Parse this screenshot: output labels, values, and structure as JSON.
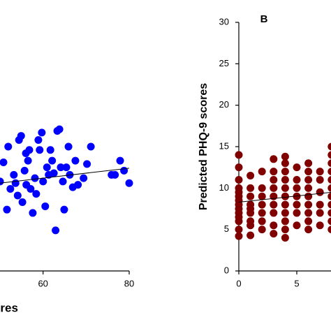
{
  "chart_data": [
    {
      "type": "scatter",
      "x_label": "ores",
      "color": "#0000ff",
      "x": [
        50,
        50.8,
        51.6,
        51.9,
        52.4,
        53.2,
        53.6,
        54.1,
        54.4,
        54.9,
        55.2,
        55.7,
        56,
        56.1,
        56.5,
        56.8,
        57.1,
        57.6,
        58.1,
        58.4,
        58.9,
        59.2,
        59.7,
        60,
        60.5,
        60.9,
        61.3,
        61.7,
        62.1,
        62.5,
        62.9,
        63.3,
        63.8,
        64.1,
        64.6,
        64.9,
        65.4,
        65.9,
        66.2,
        66.9,
        67.5,
        68.1,
        69.4,
        70.2,
        71.1,
        75.9,
        76.7,
        77.9,
        78.8,
        80
      ],
      "y": [
        10.8,
        13.1,
        7.4,
        15,
        9.9,
        11.6,
        10.6,
        9.1,
        15.8,
        16.3,
        8.3,
        12.1,
        14.2,
        10.4,
        13.3,
        14.6,
        9.9,
        7,
        11.2,
        9.3,
        15.8,
        14.6,
        16.7,
        10.8,
        7.8,
        12.5,
        11.6,
        14.6,
        13.3,
        11.8,
        4.9,
        16.9,
        17.1,
        12.5,
        10.8,
        7.4,
        12.5,
        15,
        11.6,
        10.1,
        13.3,
        10.4,
        11.2,
        12.9,
        15,
        11.6,
        11.6,
        13.3,
        12.1,
        10.6
      ],
      "trendline": {
        "x": [
          50,
          80
        ],
        "y": [
          10.6,
          12.4
        ]
      },
      "xlim": [
        40,
        80
      ],
      "ylim": [
        0,
        30
      ],
      "xticks": [
        60,
        80
      ]
    },
    {
      "type": "scatter",
      "panel_label": "B",
      "y_label": "Predicted PHQ-9 scores",
      "color": "#800000",
      "x": [
        0,
        0,
        0,
        0,
        0,
        0,
        0,
        0,
        0,
        0,
        0,
        0,
        0,
        0,
        1,
        1,
        1,
        1,
        1,
        1,
        1,
        1,
        1,
        2,
        2,
        2,
        2,
        2,
        2,
        2,
        3,
        3,
        3,
        3,
        3,
        3,
        3,
        3,
        3,
        4,
        4,
        4,
        4,
        4,
        4,
        4,
        4,
        4,
        4,
        4,
        5,
        5,
        5,
        5,
        5,
        5,
        5,
        6,
        6,
        6,
        6,
        6,
        6,
        6,
        6,
        6,
        7,
        7,
        7,
        7,
        7,
        7,
        8,
        8,
        8,
        8,
        8,
        8,
        8,
        8,
        8,
        8,
        8
      ],
      "y": [
        4.2,
        5,
        6,
        6.5,
        7,
        7.5,
        8,
        8.5,
        9,
        9.5,
        10,
        11,
        12.5,
        14,
        4.3,
        5.5,
        6,
        7,
        7.5,
        8,
        9,
        10,
        11.5,
        5,
        6,
        7,
        8,
        9,
        10,
        12,
        4.5,
        5.5,
        7,
        8,
        9,
        10,
        11,
        12,
        13.5,
        4,
        5,
        6,
        7,
        8,
        9,
        10,
        11,
        12,
        13,
        13.8,
        5.5,
        7,
        8,
        9,
        10,
        11,
        12.5,
        5,
        6,
        7,
        8,
        9,
        10,
        11,
        12,
        13,
        5.5,
        7,
        8,
        9.5,
        11,
        12,
        5,
        6,
        7,
        8,
        9,
        10,
        11,
        12,
        13,
        14,
        15
      ],
      "trendline": {
        "x": [
          0,
          8
        ],
        "y": [
          8.3,
          9.5
        ]
      },
      "xlim": [
        0,
        10
      ],
      "ylim": [
        0,
        30
      ],
      "xticks": [
        0,
        5
      ],
      "yticks": [
        0,
        5,
        10,
        15,
        20,
        25,
        30
      ]
    }
  ]
}
